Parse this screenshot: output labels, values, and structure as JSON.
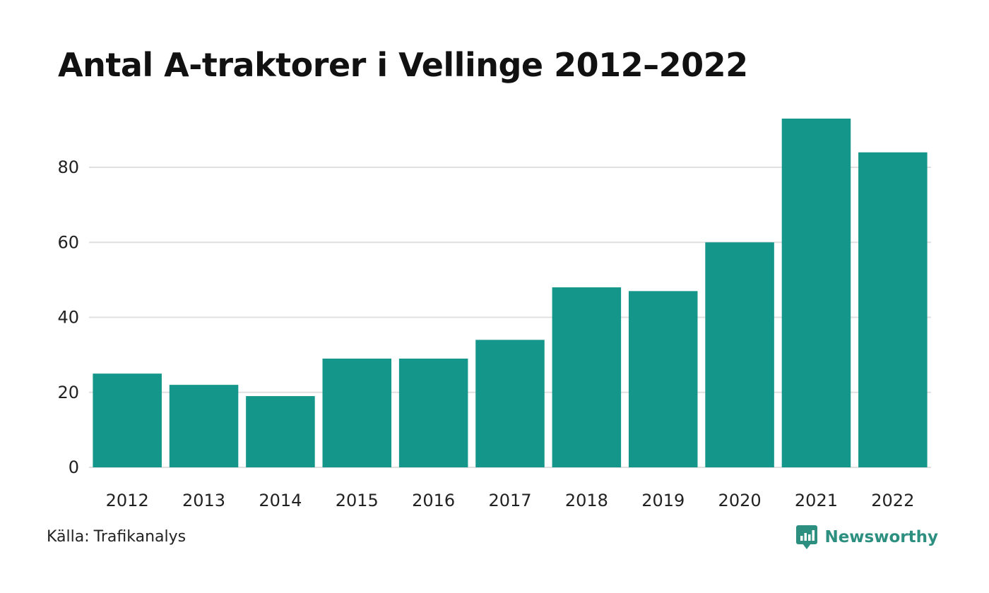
{
  "page": {
    "title": "Antal A-traktorer i Vellinge 2012–2022"
  },
  "chart_data": {
    "type": "bar",
    "title": "Antal A-traktorer i Vellinge 2012–2022",
    "xlabel": "",
    "ylabel": "",
    "categories": [
      "2012",
      "2013",
      "2014",
      "2015",
      "2016",
      "2017",
      "2018",
      "2019",
      "2020",
      "2021",
      "2022"
    ],
    "values": [
      25,
      22,
      19,
      29,
      29,
      34,
      48,
      47,
      60,
      93,
      84
    ],
    "ylim": [
      0,
      93
    ],
    "yticks": [
      0,
      20,
      40,
      60,
      80
    ],
    "grid": true,
    "legend": "none",
    "bar_color": "#14978a",
    "grid_color": "#e0e0e0"
  },
  "footer": {
    "source_prefix": "Källa:",
    "source_name": "Trafikanalys",
    "brand": "Newsworthy",
    "brand_color": "#2c8f80",
    "brand_icon": "newsworthy-logo-icon"
  }
}
